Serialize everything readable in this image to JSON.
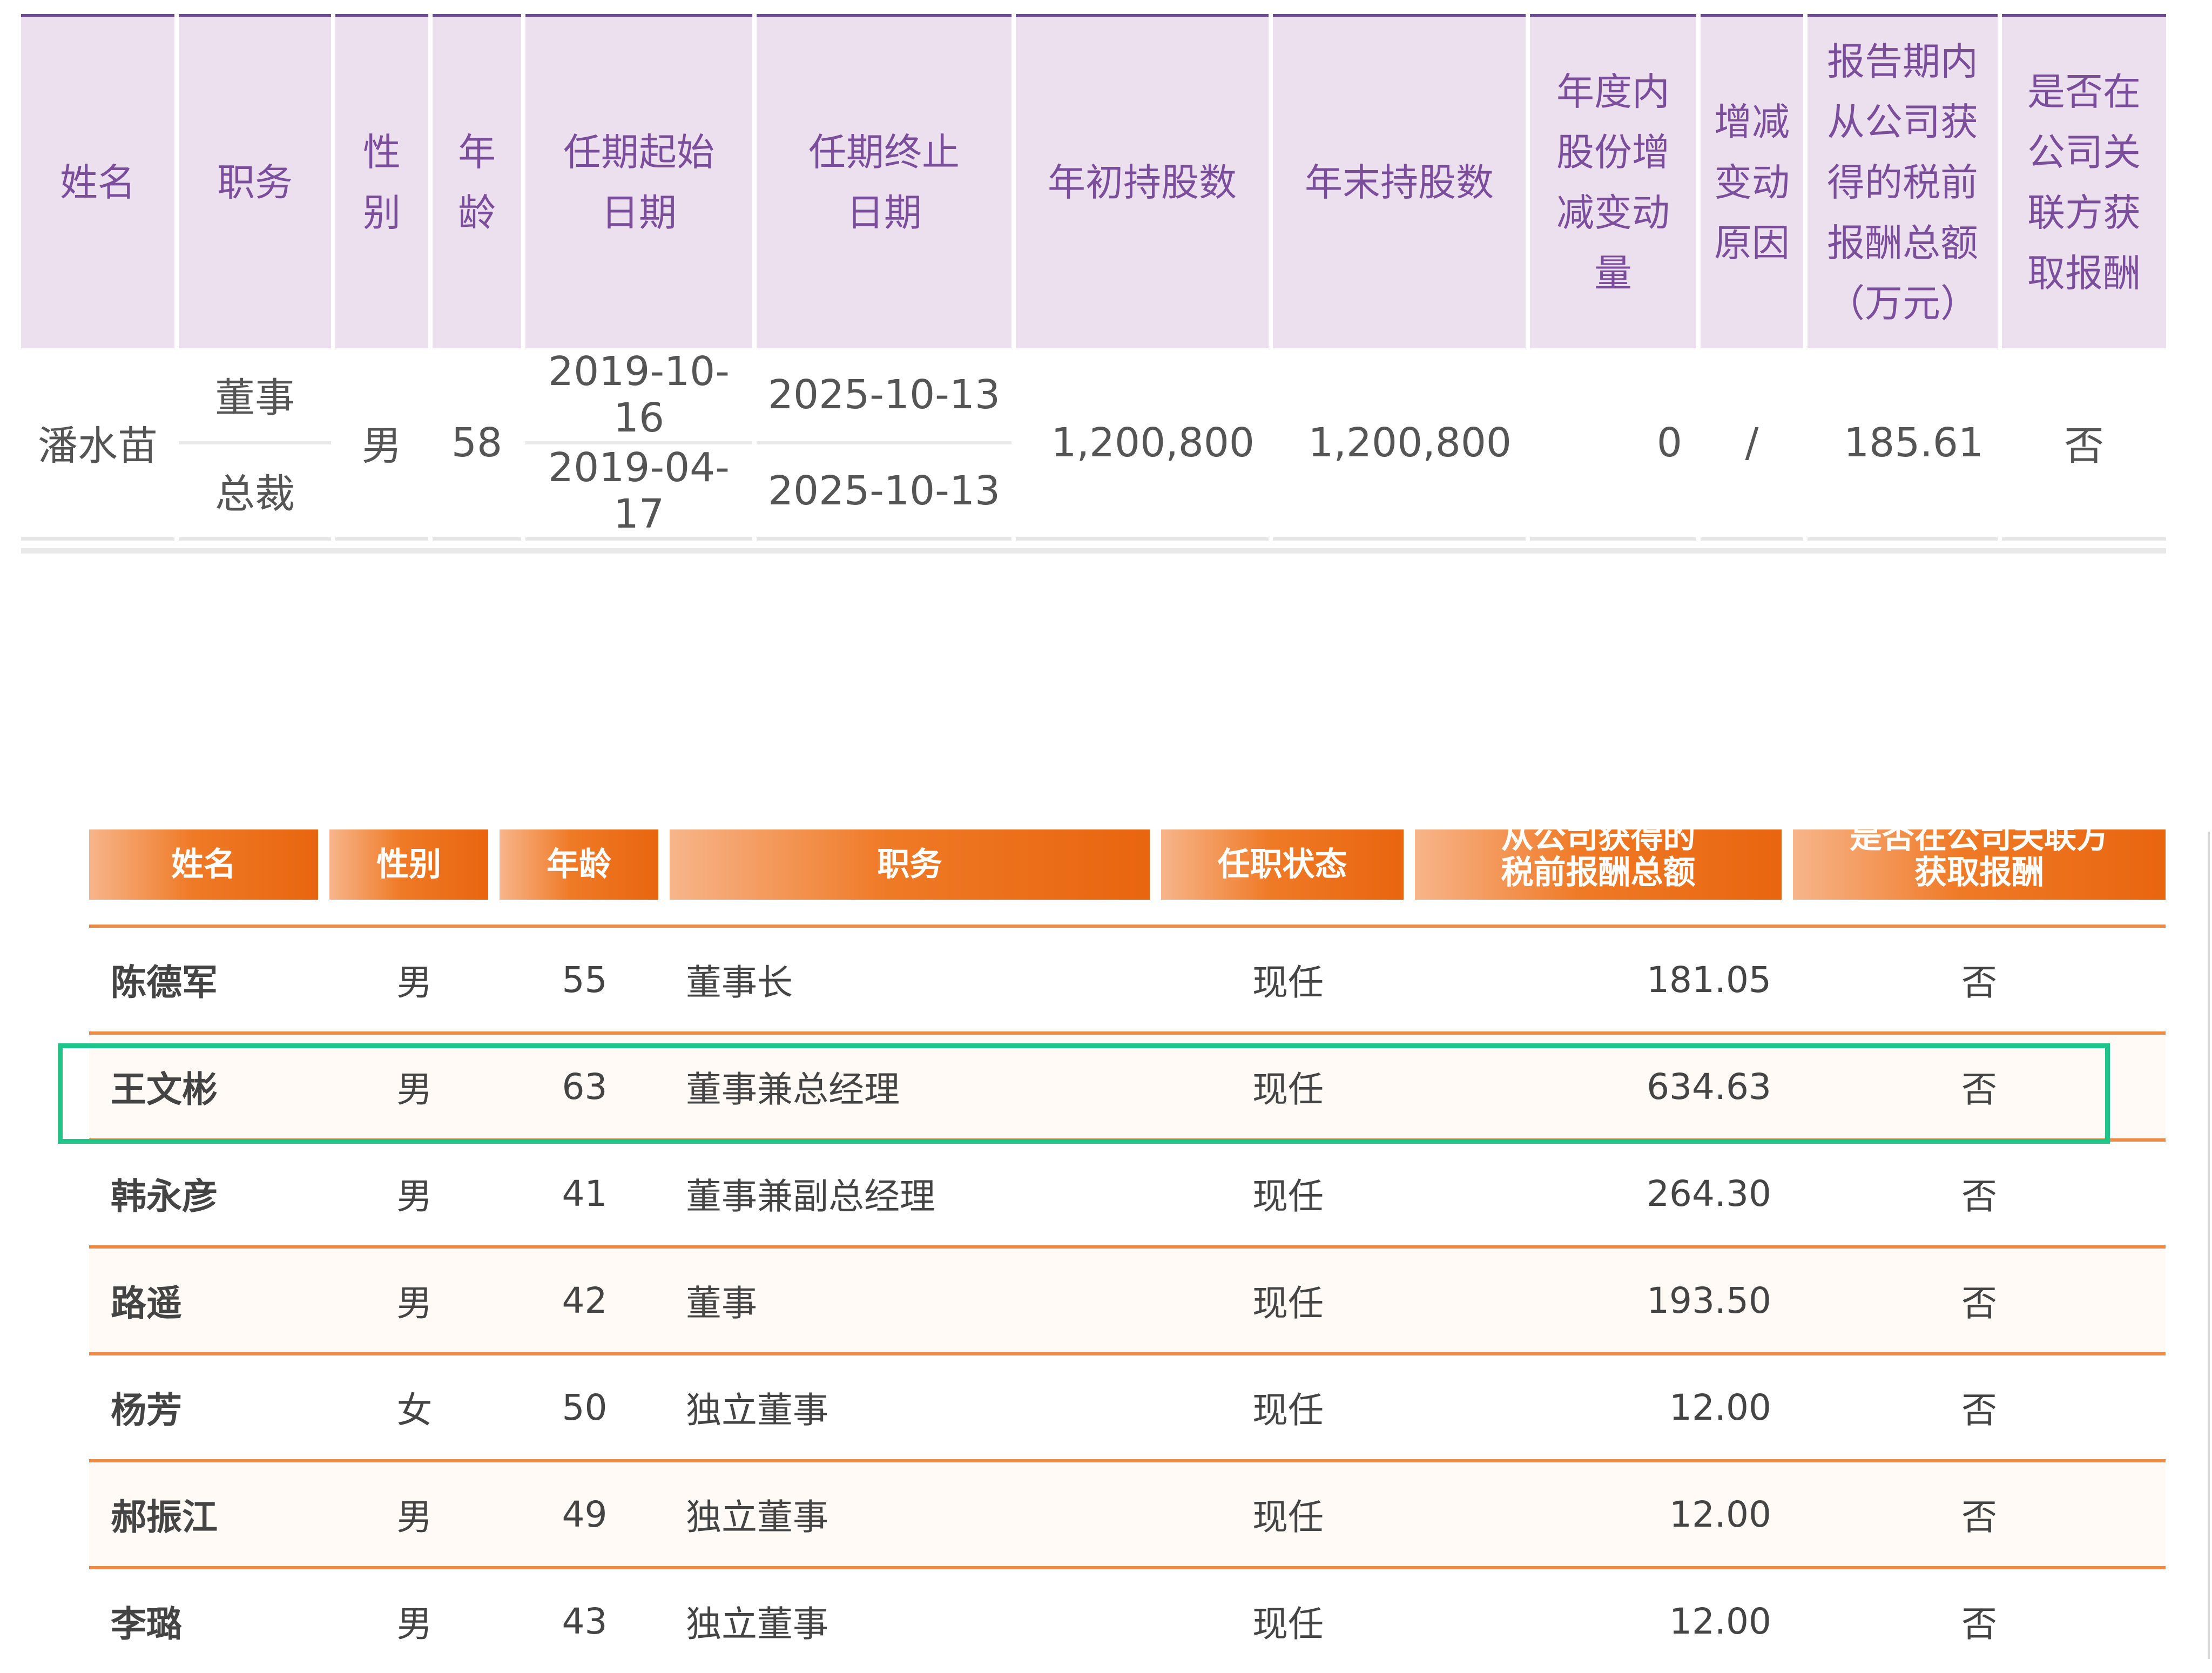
{
  "table1": {
    "headers": [
      [
        "姓名"
      ],
      [
        "职务"
      ],
      [
        "性",
        "别"
      ],
      [
        "年",
        "龄"
      ],
      [
        "任期起始",
        "日期"
      ],
      [
        "任期终止",
        "日期"
      ],
      [
        "年初持股数"
      ],
      [
        "年末持股数"
      ],
      [
        "年度内",
        "股份增",
        "减变动",
        "量"
      ],
      [
        "增减",
        "变动",
        "原因"
      ],
      [
        "报告期内",
        "从公司获",
        "得的税前",
        "报酬总额",
        "（万元）"
      ],
      [
        "是否在",
        "公司关",
        "联方获",
        "取报酬"
      ]
    ],
    "row": {
      "name": "潘水苗",
      "positions": [
        "董事",
        "总裁"
      ],
      "gender": "男",
      "age": "58",
      "start_dates": [
        "2019-10-16",
        "2019-04-17"
      ],
      "end_dates": [
        "2025-10-13",
        "2025-10-13"
      ],
      "shares_begin": "1,200,800",
      "shares_end": "1,200,800",
      "change": "0",
      "reason": "/",
      "pay": "185.61",
      "related": "否"
    }
  },
  "table2": {
    "headers": {
      "name": "姓名",
      "gender": "性别",
      "age": "年龄",
      "position": "职务",
      "status": "任职状态",
      "pay_line1": "从公司获得的",
      "pay_line2": "税前报酬总额",
      "related_line1": "是否在公司关联方",
      "related_line2": "获取报酬"
    },
    "rows": [
      {
        "name": "陈德军",
        "gender": "男",
        "age": "55",
        "position": "董事长",
        "status": "现任",
        "pay": "181.05",
        "related": "否"
      },
      {
        "name": "王文彬",
        "gender": "男",
        "age": "63",
        "position": "董事兼总经理",
        "status": "现任",
        "pay": "634.63",
        "related": "否"
      },
      {
        "name": "韩永彦",
        "gender": "男",
        "age": "41",
        "position": "董事兼副总经理",
        "status": "现任",
        "pay": "264.30",
        "related": "否"
      },
      {
        "name": "路遥",
        "gender": "男",
        "age": "42",
        "position": "董事",
        "status": "现任",
        "pay": "193.50",
        "related": "否"
      },
      {
        "name": "杨芳",
        "gender": "女",
        "age": "50",
        "position": "独立董事",
        "status": "现任",
        "pay": "12.00",
        "related": "否"
      },
      {
        "name": "郝振江",
        "gender": "男",
        "age": "49",
        "position": "独立董事",
        "status": "现任",
        "pay": "12.00",
        "related": "否"
      },
      {
        "name": "李璐",
        "gender": "男",
        "age": "43",
        "position": "独立董事",
        "status": "现任",
        "pay": "12.00",
        "related": "否"
      }
    ]
  },
  "colors": {
    "purple_header_bg": "#ede0ee",
    "purple_header_text": "#7b4e9c",
    "orange_header": "#ef7a26",
    "orange_name": "#e4701b",
    "highlight": "#1fc48a"
  }
}
